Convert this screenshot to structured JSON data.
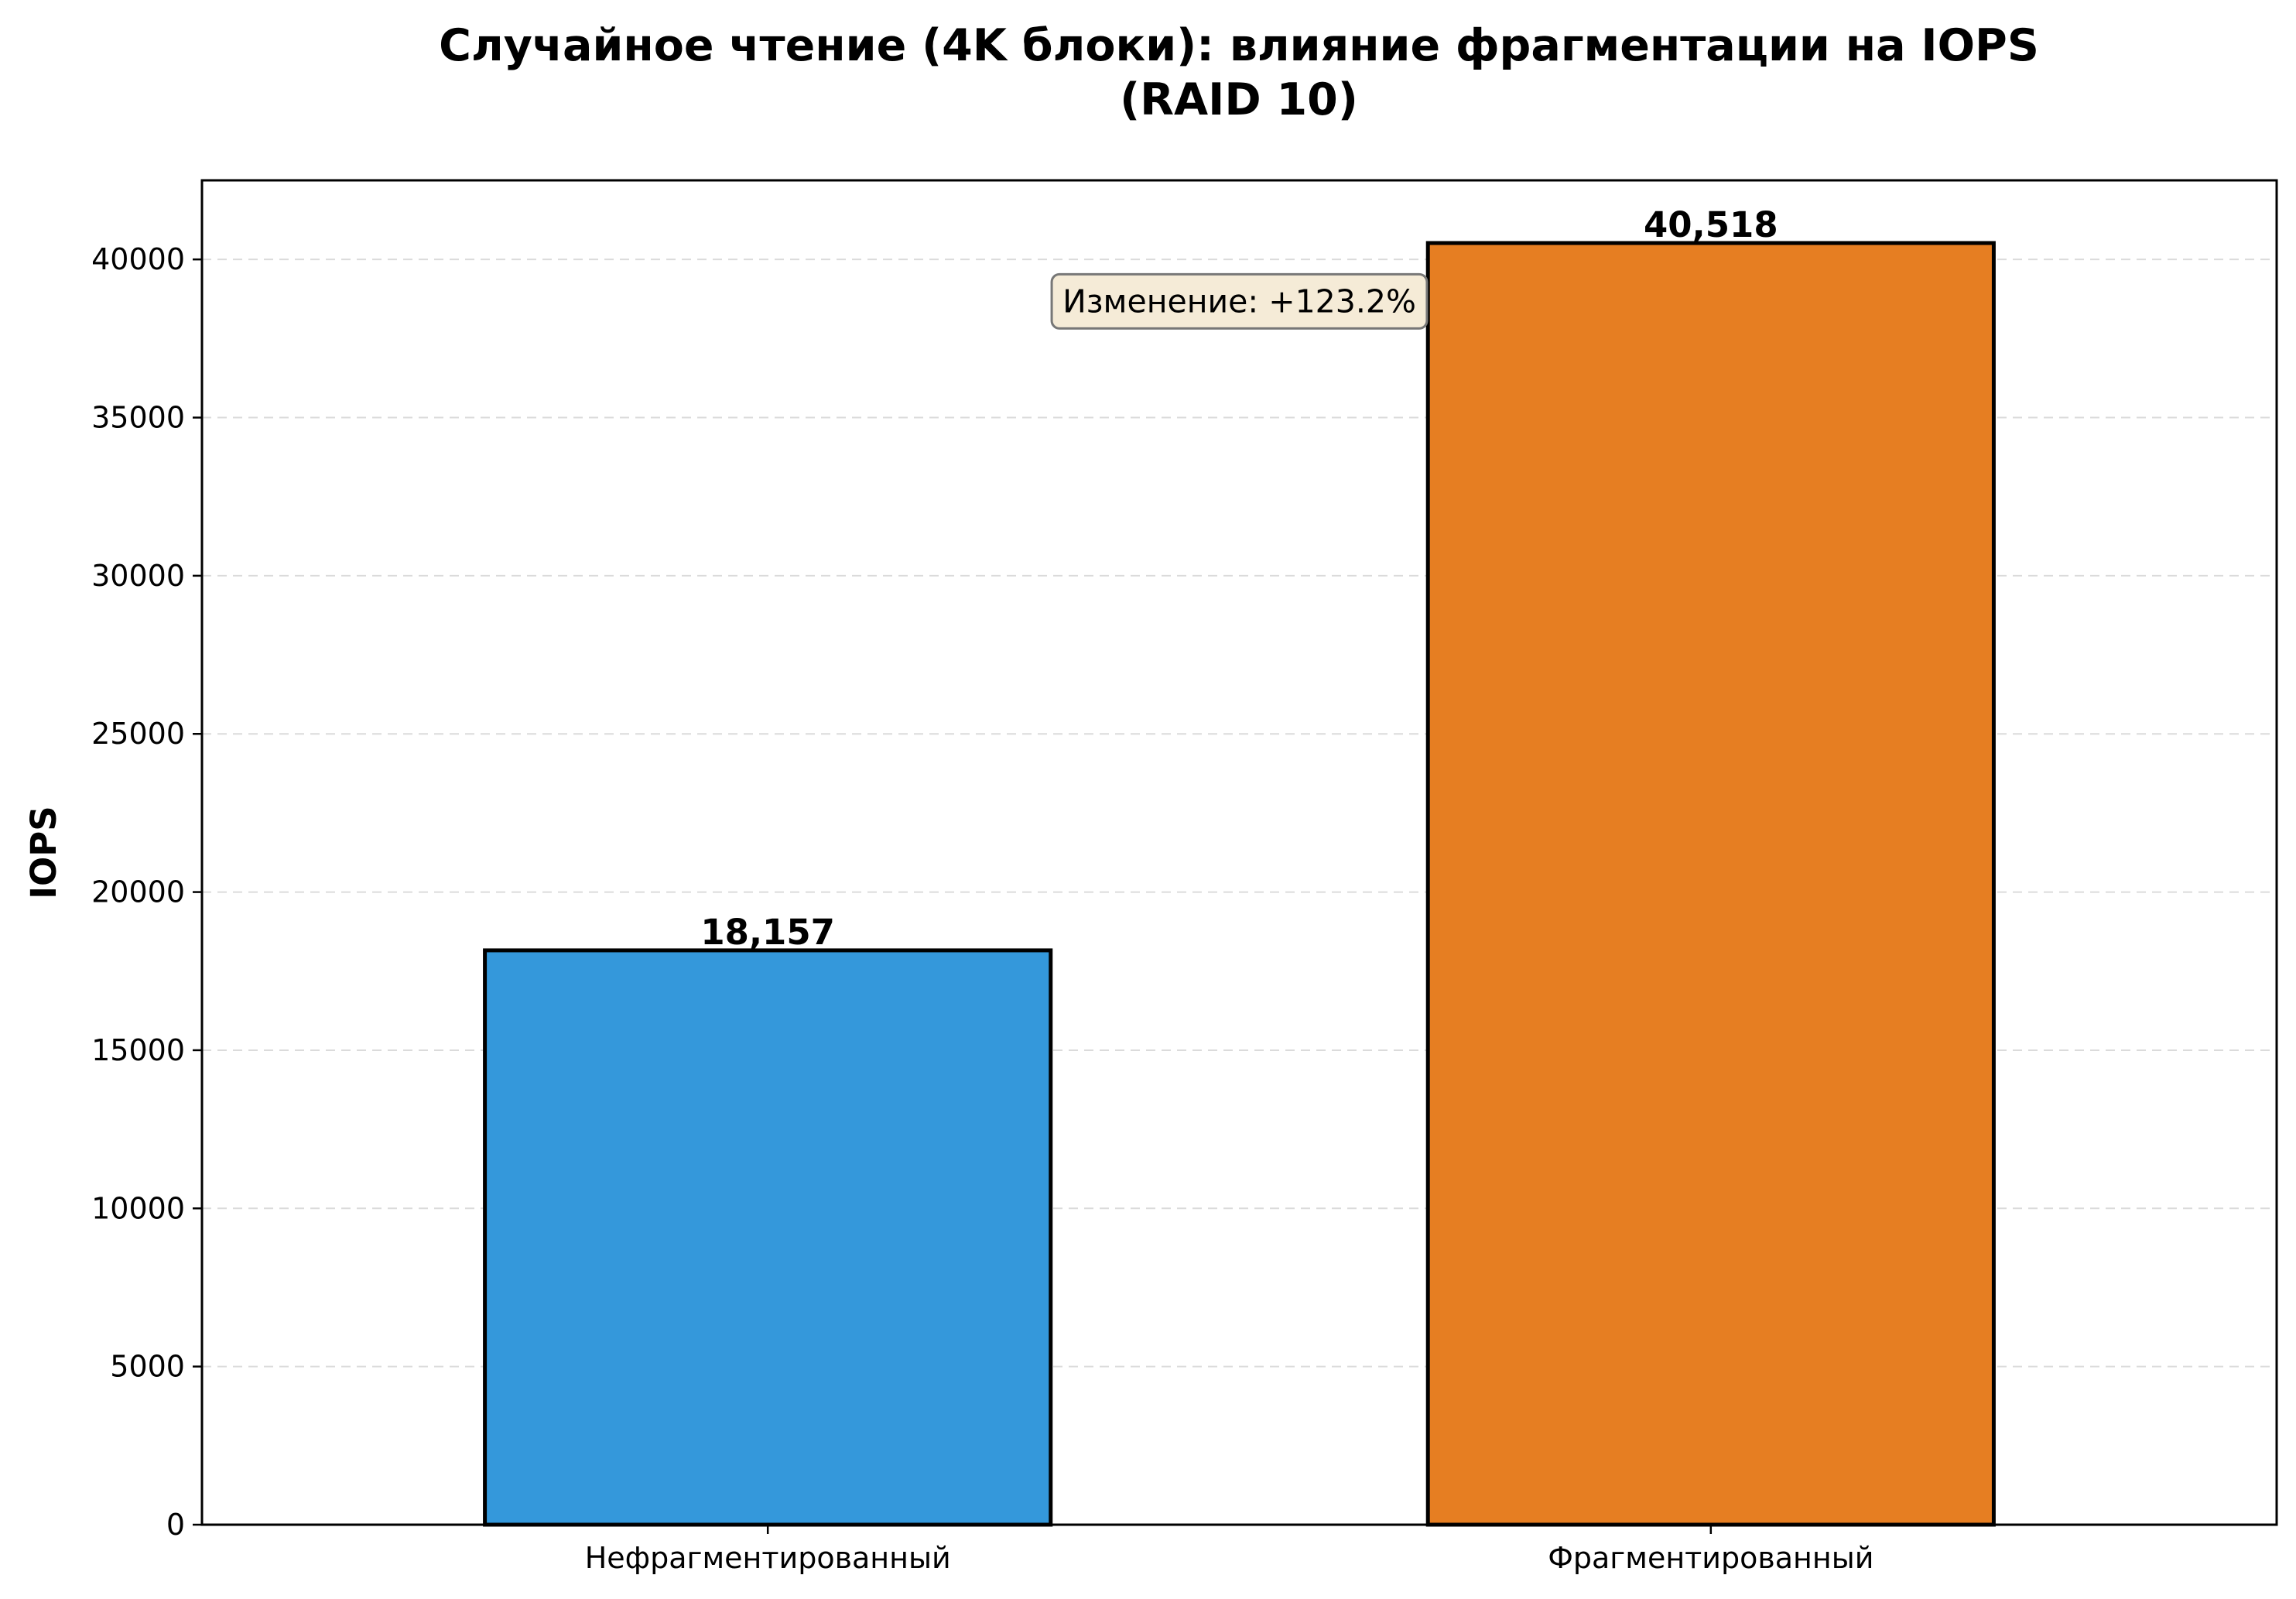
{
  "chart_data": {
    "type": "bar",
    "title_line1": "Случайное чтение (4K блоки): влияние фрагментации на IOPS",
    "title_line2": "(RAID 10)",
    "xlabel": "",
    "ylabel": "IOPS",
    "categories": [
      "Нефрагментированный",
      "Фрагментированный"
    ],
    "values": [
      18157,
      40518
    ],
    "value_labels": [
      "18,157",
      "40,518"
    ],
    "colors": [
      "#3498db",
      "#e67e22"
    ],
    "ylim": [
      0,
      42500
    ],
    "yticks": [
      0,
      5000,
      10000,
      15000,
      20000,
      25000,
      30000,
      35000,
      40000
    ],
    "ytick_labels": [
      "0",
      "5000",
      "10000",
      "15000",
      "20000",
      "25000",
      "30000",
      "35000",
      "40000"
    ],
    "grid": "horizontal dashed",
    "annotation": "Изменение: +123.2%",
    "annotation_box_color": "#f5ebd7"
  }
}
